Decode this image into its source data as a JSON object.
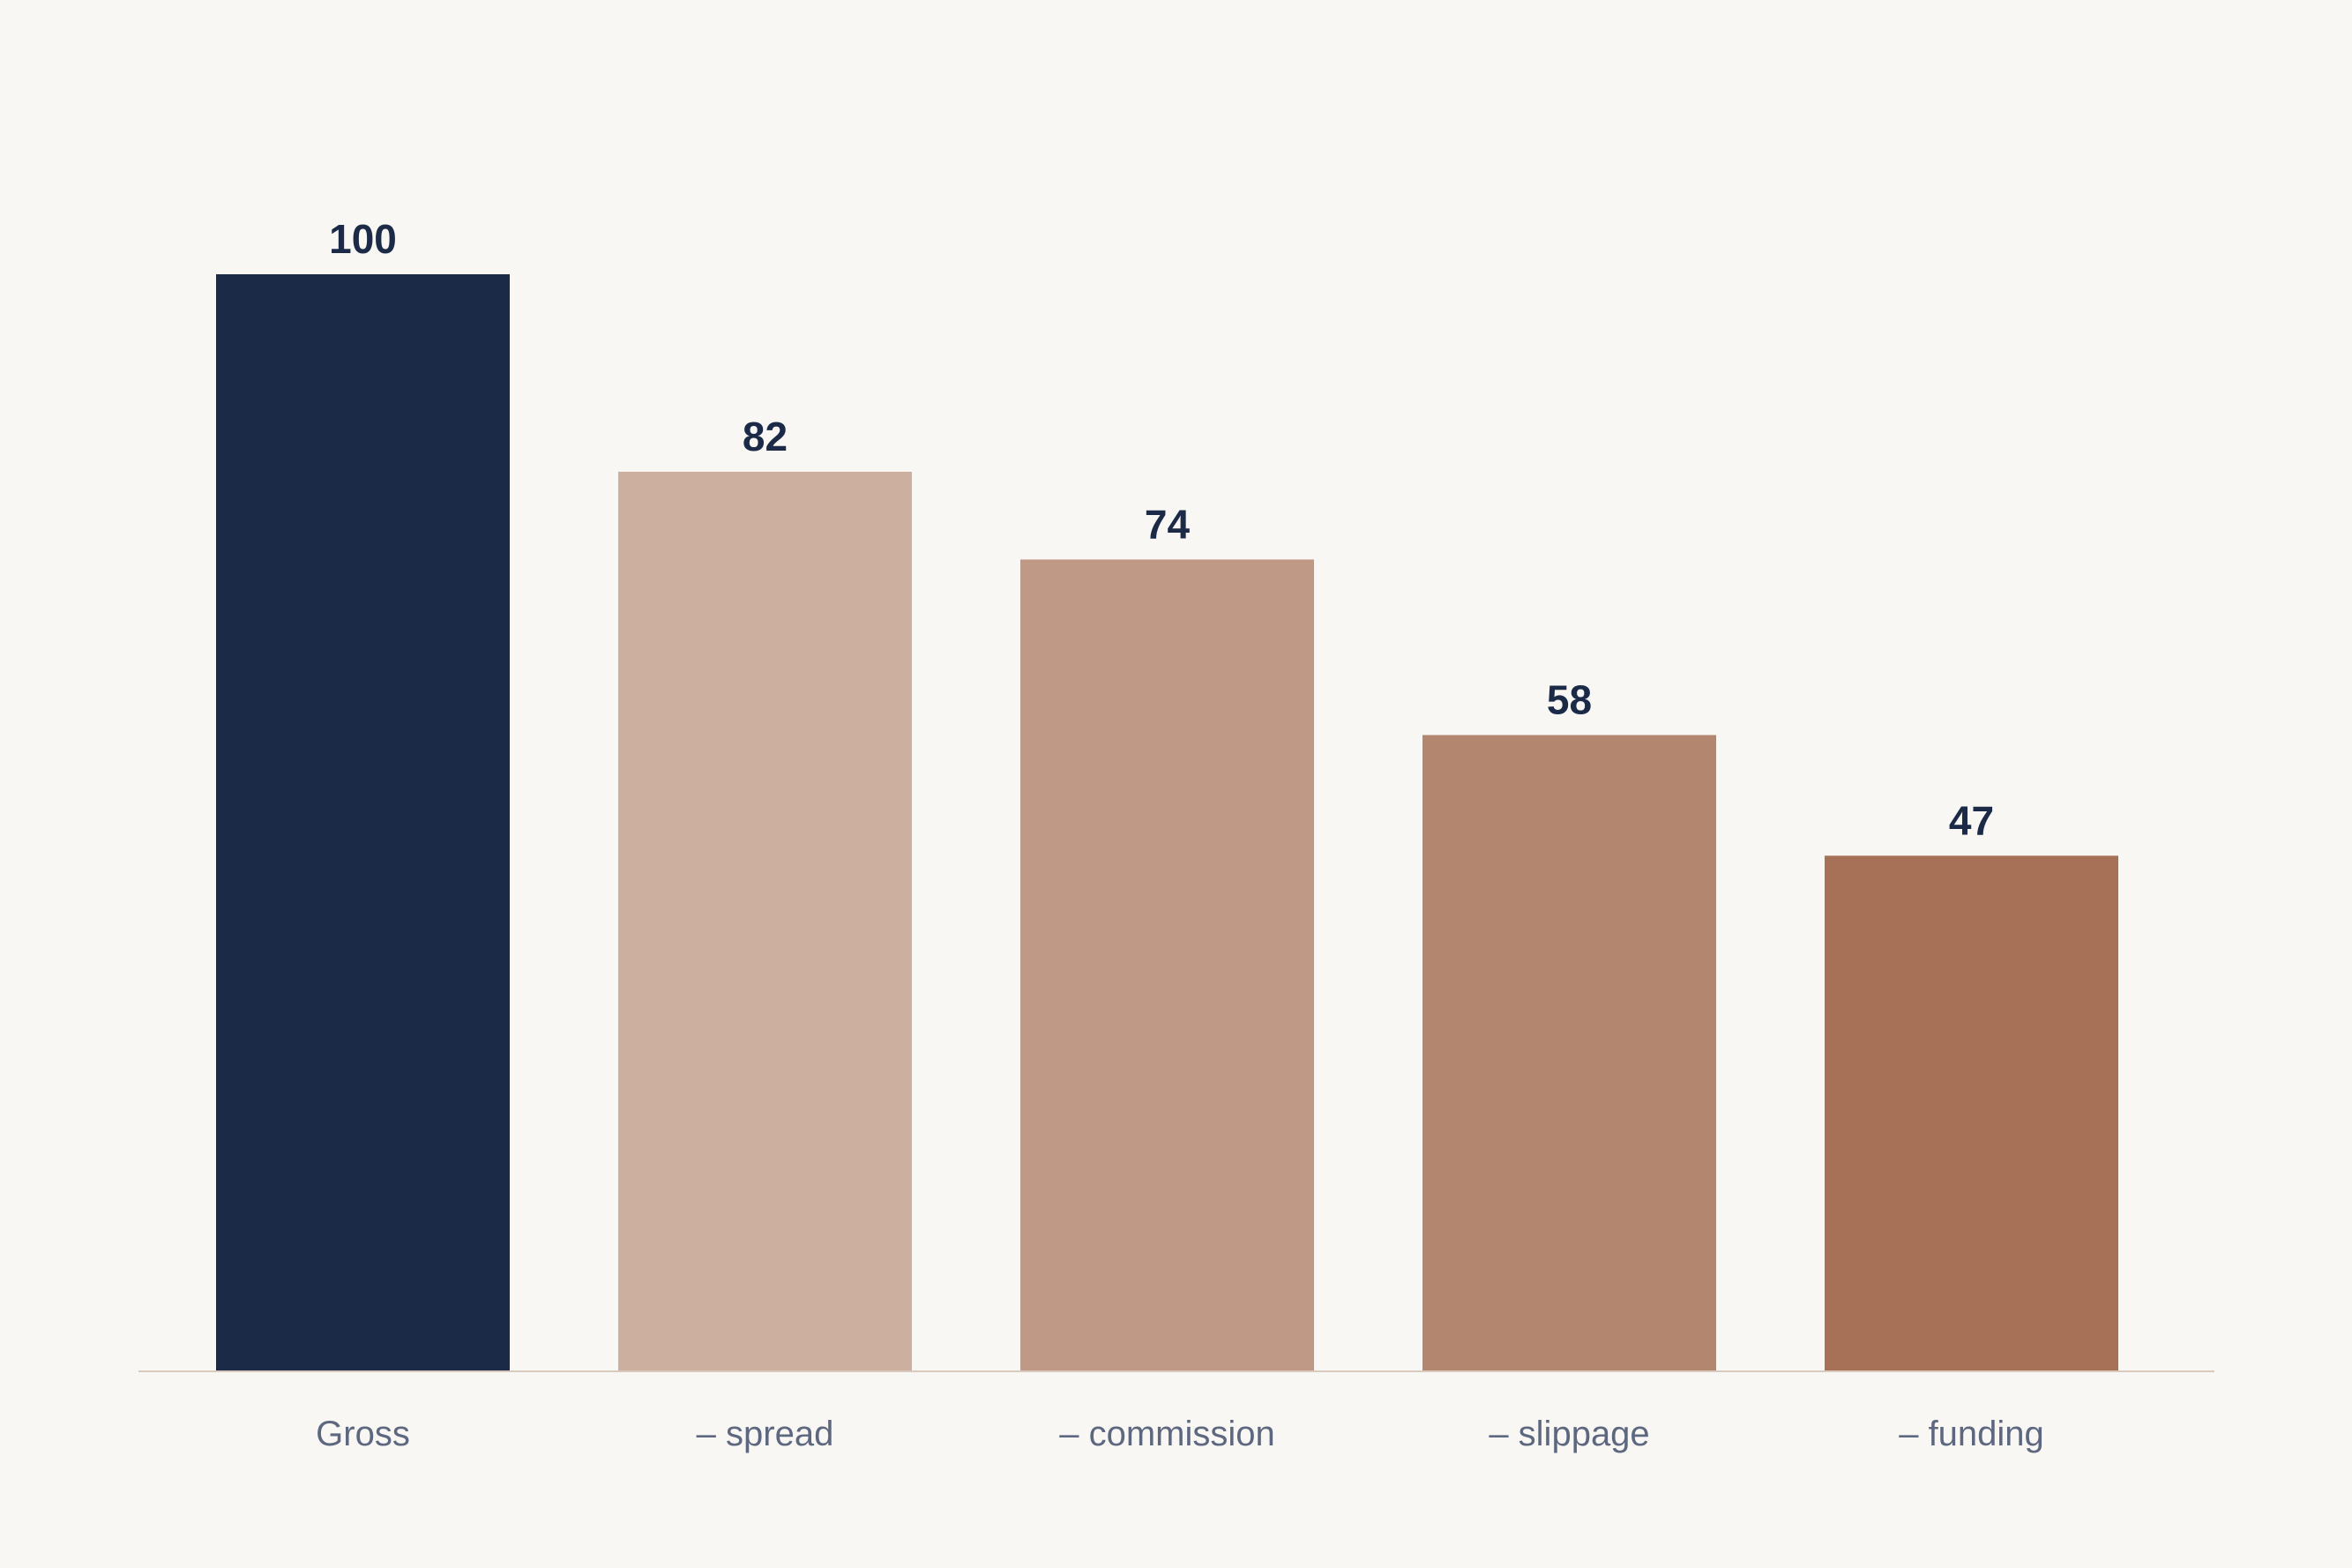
{
  "chart_data": {
    "type": "bar",
    "categories": [
      "Gross",
      "– spread",
      "– commission",
      "– slippage",
      "– funding"
    ],
    "values": [
      100,
      82,
      74,
      58,
      47
    ],
    "data_labels": [
      "100",
      "82",
      "74",
      "58",
      "47"
    ],
    "title": "",
    "xlabel": "",
    "ylabel": "",
    "ylim": [
      0,
      100
    ],
    "grid": false,
    "legend": "none",
    "colors": [
      "#1b2a47",
      "#ccaf9f",
      "#c09886",
      "#b3866f",
      "#a67156"
    ],
    "axis_color": "#d8cbbd",
    "background": "#f9f7f3"
  }
}
